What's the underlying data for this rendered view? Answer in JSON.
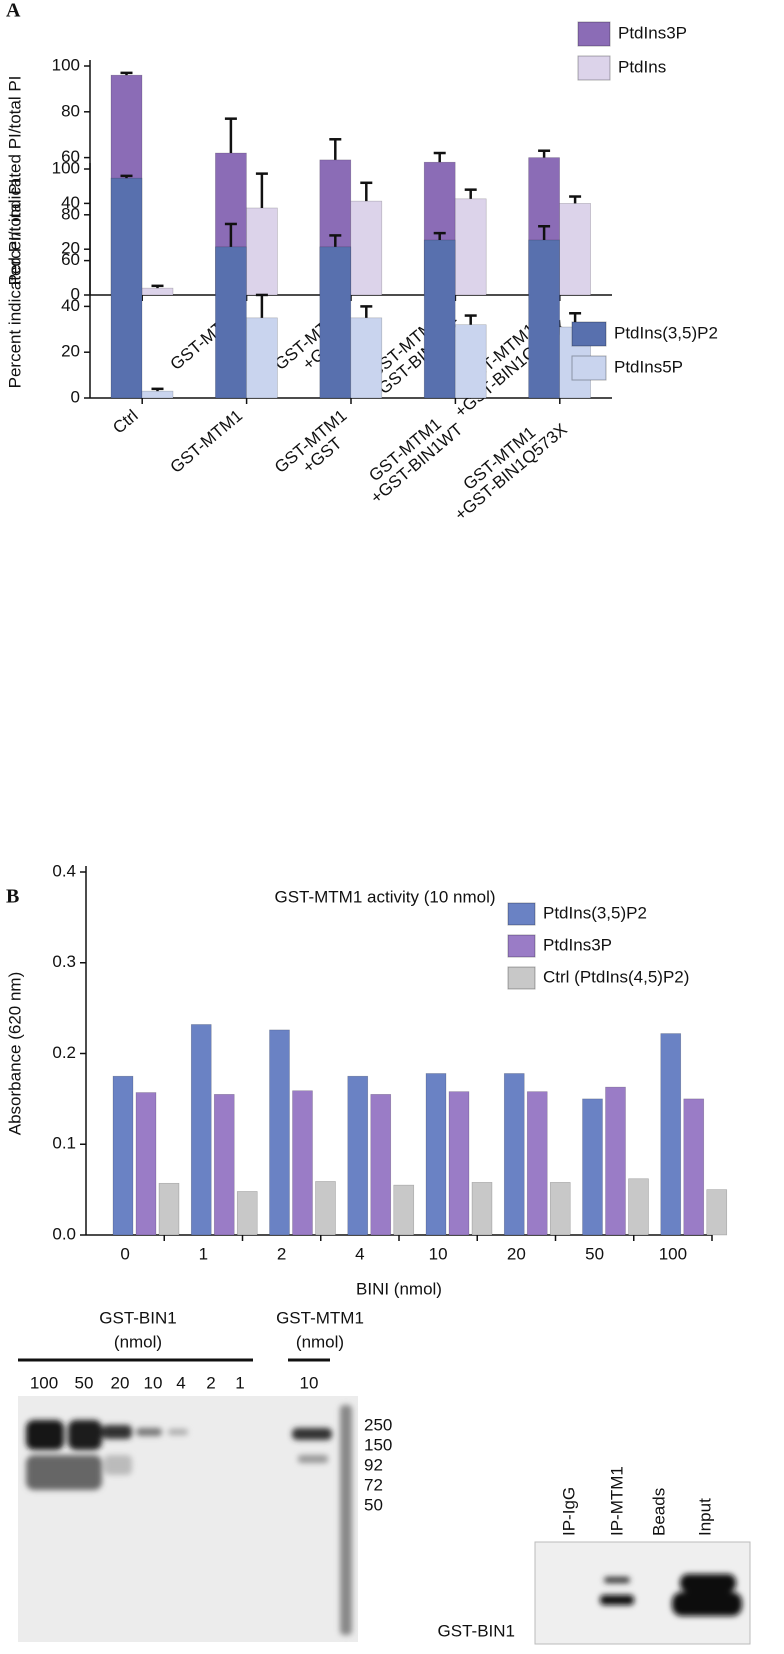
{
  "panel_labels": [
    "A",
    "B"
  ],
  "chart_data": [
    {
      "type": "bar",
      "ylabel": "Percent indicated PI/total PI",
      "categories": [
        [
          "Ctrl"
        ],
        [
          "GST-MTM1"
        ],
        [
          "GST-MTM1",
          "+GST"
        ],
        [
          "GST-MTM1",
          "+GST-BIN1WT"
        ],
        [
          "GST-MTM1",
          "+GST-BIN1Q573X"
        ]
      ],
      "series": [
        {
          "name": "PtdIns3P",
          "color": "#8b6cb6",
          "values": [
            96,
            62,
            59,
            58,
            60
          ],
          "errors": [
            1,
            15,
            9,
            4,
            3
          ]
        },
        {
          "name": "PtdIns",
          "color": "#dcd3ea",
          "values": [
            3,
            38,
            41,
            42,
            40
          ],
          "errors": [
            1,
            15,
            8,
            4,
            3
          ]
        }
      ],
      "ylim": [
        0,
        100
      ],
      "yticks": [
        0,
        20,
        40,
        60,
        80,
        100
      ],
      "legend": "top-right"
    },
    {
      "type": "bar",
      "ylabel": "Percent indicated PI/total PI",
      "categories": [
        [
          "Ctrl"
        ],
        [
          "GST-MTM1"
        ],
        [
          "GST-MTM1",
          "+GST"
        ],
        [
          "GST-MTM1",
          "+GST-BIN1WT"
        ],
        [
          "GST-MTM1",
          "+GST-BIN1Q573X"
        ]
      ],
      "series": [
        {
          "name": "PtdIns(3,5)P2",
          "color": "#5870ae",
          "values": [
            96,
            66,
            66,
            69,
            69
          ],
          "errors": [
            1,
            10,
            5,
            3,
            6
          ]
        },
        {
          "name": "PtdIns5P",
          "color": "#c9d4ee",
          "values": [
            3,
            35,
            35,
            32,
            31
          ],
          "errors": [
            1,
            10,
            5,
            4,
            6
          ]
        }
      ],
      "ylim": [
        0,
        100
      ],
      "yticks": [
        0,
        20,
        40,
        60,
        80,
        100
      ],
      "legend": "top-right"
    },
    {
      "type": "bar",
      "title": "GST-MTM1 activity (10 nmol)",
      "ylabel": "Absorbance (620 nm)",
      "xlabel": "BINI (nmol)",
      "categories": [
        "0",
        "1",
        "2",
        "4",
        "10",
        "20",
        "50",
        "100"
      ],
      "series": [
        {
          "name": "PtdIns(3,5)P2",
          "color": "#6a82c4",
          "values": [
            0.175,
            0.232,
            0.226,
            0.175,
            0.178,
            0.178,
            0.15,
            0.222
          ]
        },
        {
          "name": "PtdIns3P",
          "color": "#9a7cc6",
          "values": [
            0.157,
            0.155,
            0.159,
            0.155,
            0.158,
            0.158,
            0.163,
            0.15
          ]
        },
        {
          "name": "Ctrl (PtdIns(4,5)P2)",
          "color": "#c8c8c8",
          "values": [
            0.057,
            0.048,
            0.059,
            0.055,
            0.058,
            0.058,
            0.062,
            0.05
          ]
        }
      ],
      "ylim": [
        0,
        0.4
      ],
      "yticks": [
        {
          "value": 0,
          "label": "0.0"
        },
        0.1,
        0.2,
        0.3,
        0.4
      ],
      "legend": "top-right"
    }
  ],
  "gel_left": {
    "groups": [
      {
        "title": "GST-BIN1",
        "unit": "(nmol)"
      },
      {
        "title": "GST-MTM1",
        "unit": "(nmol)"
      }
    ],
    "lanes": [
      "100",
      "50",
      "20",
      "10",
      "4",
      "2",
      "1",
      "10"
    ],
    "markers": [
      "250",
      "150",
      "92",
      "72",
      "50"
    ]
  },
  "gel_right": {
    "lanes": [
      "IP-IgG",
      "IP-MTM1",
      "Beads",
      "Input"
    ],
    "row_label": "GST-BIN1"
  }
}
